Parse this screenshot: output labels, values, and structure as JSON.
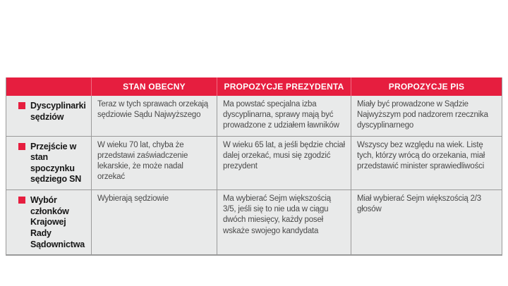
{
  "page": {
    "background_color": "#ffffff"
  },
  "table": {
    "accent_color": "#e61e3f",
    "body_background_color": "#e9eaea",
    "border_color": "#9a9a9a",
    "columns": {
      "corner": "",
      "col1": "STAN OBECNY",
      "col2": "PROPOZYCJE PREZYDENTA",
      "col3": "PROPOZYCJE PIS"
    },
    "rows": [
      {
        "label": "Dyscyplinarki sędziów",
        "cells": [
          "Teraz w tych sprawach orzekają sędziowie Sądu Najwyższego",
          "Ma powstać specjalna izba dyscyplinarna, sprawy mają być prowadzone z udziałem ławników",
          "Miały być prowadzone w Sądzie Najwyższym pod nadzorem rzecznika dyscyplinarnego"
        ]
      },
      {
        "label": "Przejście w stan spoczynku sędziego SN",
        "cells": [
          "W wieku 70 lat, chyba że przedstawi zaświadczenie lekarskie, że może nadal orzekać",
          "W wieku 65 lat, a jeśli będzie chciał dalej orzekać, musi się zgodzić prezydent",
          "Wszyscy bez względu na wiek. Listę tych, którzy wrócą do orzekania, miał przedstawić minister sprawiedliwości"
        ]
      },
      {
        "label": "Wybór członków Krajowej Rady Sądownictwa",
        "cells": [
          "Wybierają sędziowie",
          "Ma wybierać Sejm większością 3/5, jeśli się to nie uda w ciągu dwóch miesięcy, każdy poseł wskaże swojego kandydata",
          "Miał wybierać Sejm większością 2/3 głosów"
        ]
      }
    ]
  }
}
